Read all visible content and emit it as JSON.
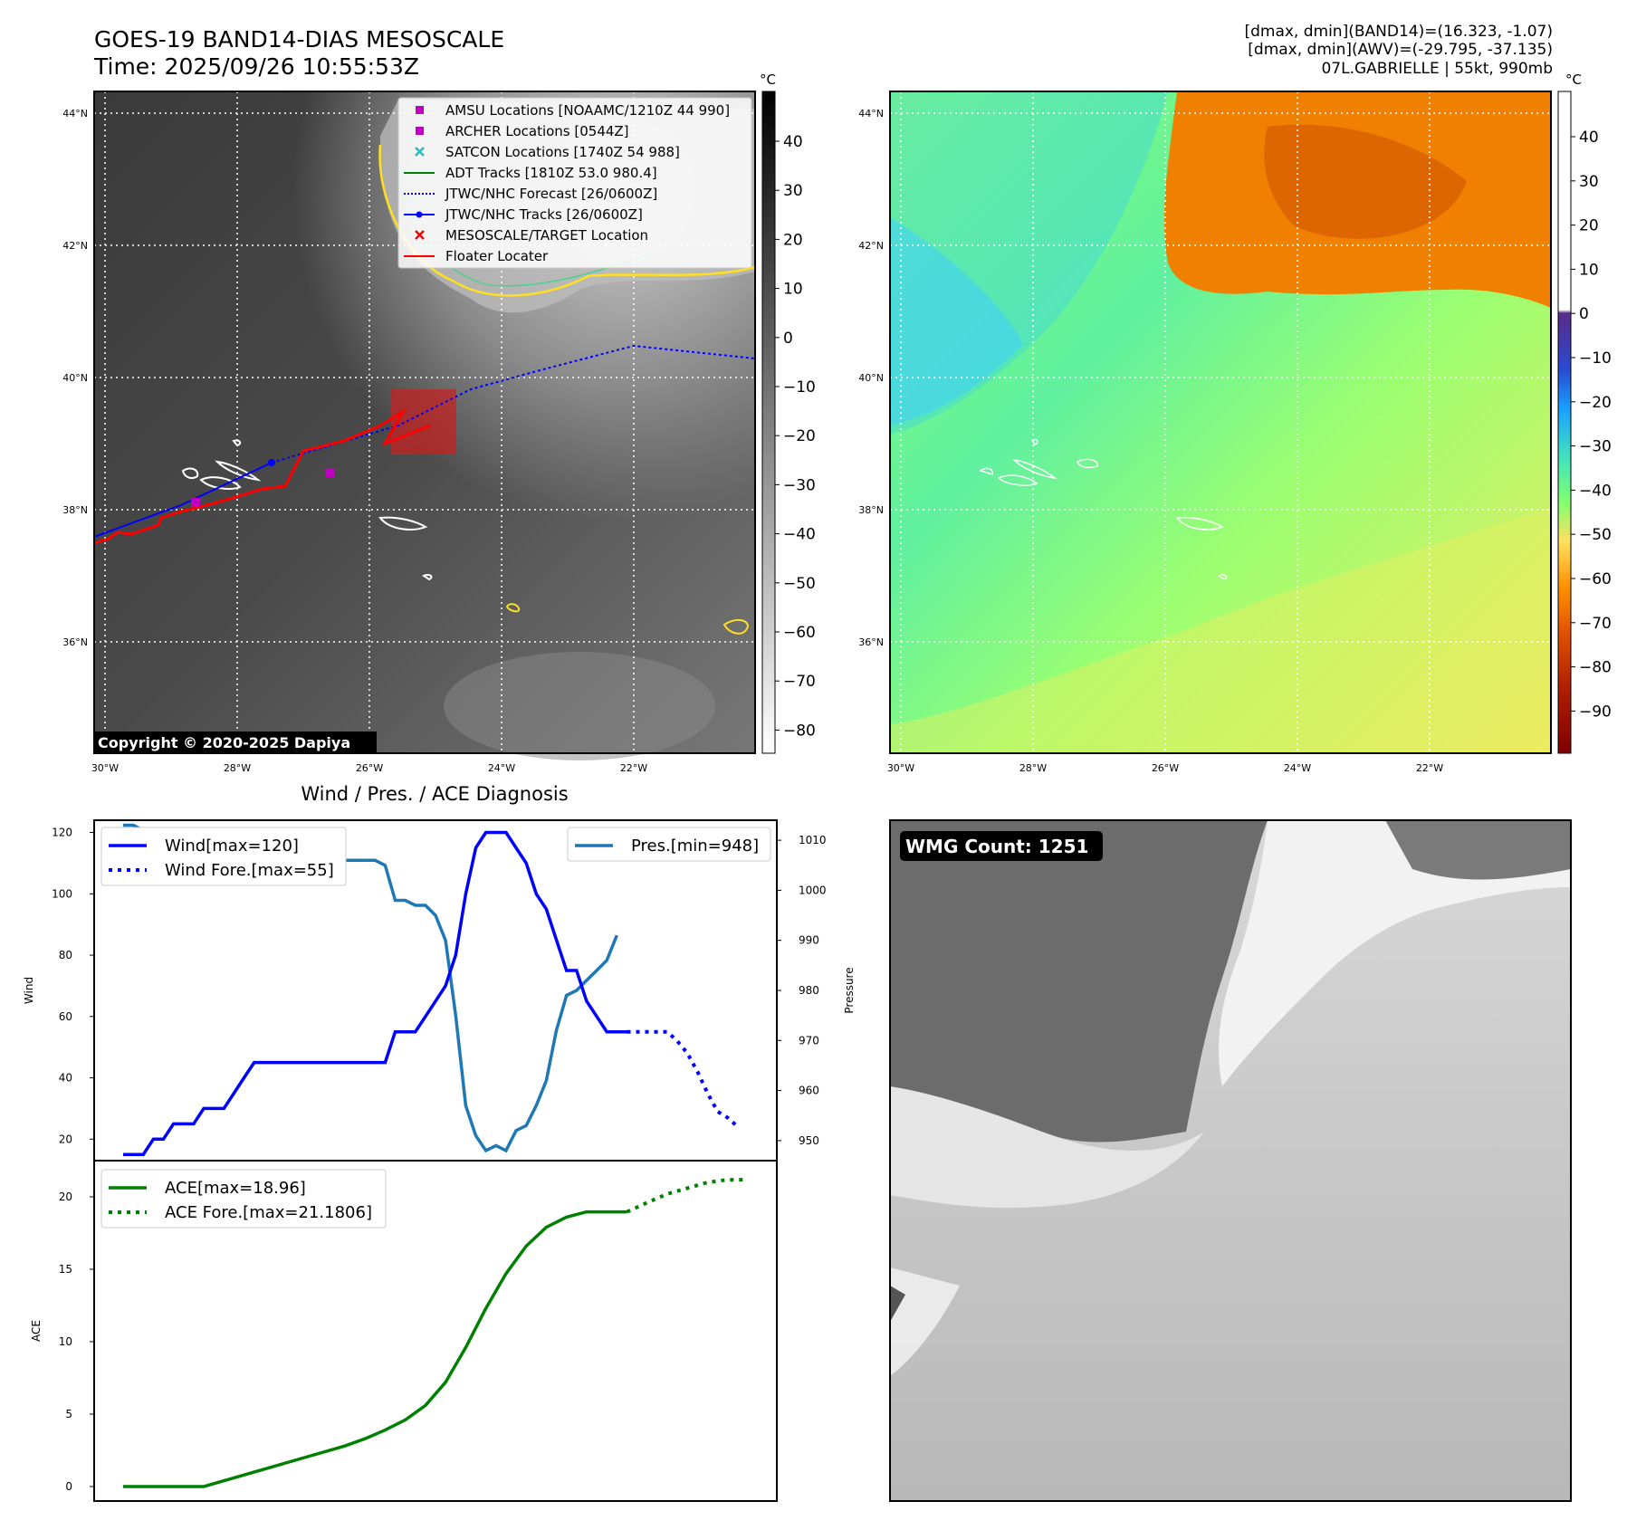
{
  "header": {
    "title_line1": "GOES-19 BAND14-DIAS MESOSCALE",
    "title_line2": "Time: 2025/09/26 10:55:53Z",
    "stats_line1": "[dmax, dmin](BAND14)=(16.323, -1.07)",
    "stats_line2": "[dmax, dmin](AWV)=(-29.795, -37.135)",
    "stats_line3": "07L.GABRIELLE | 55kt, 990mb"
  },
  "unit_label": "°C",
  "copyright": "Copyright © 2020-2025 Dapiya",
  "map_axes": {
    "lat_labels": [
      "44°N",
      "42°N",
      "40°N",
      "38°N",
      "36°N"
    ],
    "lon_labels": [
      "30°W",
      "28°W",
      "26°W",
      "24°W",
      "22°W"
    ]
  },
  "colorbar_ir": {
    "ticks": [
      "40",
      "30",
      "20",
      "10",
      "0",
      "−10",
      "−20",
      "−30",
      "−40",
      "−50",
      "−60",
      "−70",
      "−80"
    ]
  },
  "colorbar_wv": {
    "ticks": [
      "40",
      "30",
      "20",
      "10",
      "0",
      "−10",
      "−20",
      "−30",
      "−40",
      "−50",
      "−60",
      "−70",
      "−80",
      "−90"
    ]
  },
  "legend": {
    "items": [
      {
        "label": "AMSU Locations [NOAAMC/1210Z 44 990]",
        "color": "#c000c0",
        "kind": "square"
      },
      {
        "label": "ARCHER Locations [0544Z]",
        "color": "#c000c0",
        "kind": "square"
      },
      {
        "label": "SATCON Locations [1740Z 54 988]",
        "color": "#20c0c0",
        "kind": "x"
      },
      {
        "label": "ADT Tracks [1810Z 53.0 980.4]",
        "color": "#008000",
        "kind": "line"
      },
      {
        "label": "JTWC/NHC Forecast [26/0600Z]",
        "color": "#0000ff",
        "kind": "dotted"
      },
      {
        "label": "JTWC/NHC Tracks [26/0600Z]",
        "color": "#0000ff",
        "kind": "dotline"
      },
      {
        "label": "MESOSCALE/TARGET Location",
        "color": "#ff0000",
        "kind": "x"
      },
      {
        "label": "Floater Locater",
        "color": "#ff0000",
        "kind": "line"
      }
    ]
  },
  "diag_title": "Wind / Pres. / ACE Diagnosis",
  "wmg_label": "WMG Count: 1251",
  "chart_data": [
    {
      "type": "line",
      "title": "Wind / Pres. / ACE Diagnosis",
      "ylabel": "Wind",
      "ylim": [
        13,
        124
      ],
      "yticks": [
        20,
        40,
        60,
        80,
        100,
        120
      ],
      "legend": [
        "Wind[max=120]",
        "Wind Fore.[max=55]"
      ],
      "series": [
        {
          "name": "Wind[max=120]",
          "style": "solid",
          "color": "#0000ff",
          "points": [
            [
              0,
              15
            ],
            [
              2,
              15
            ],
            [
              3,
              20
            ],
            [
              4,
              20
            ],
            [
              5,
              25
            ],
            [
              6,
              25
            ],
            [
              7,
              25
            ],
            [
              8,
              30
            ],
            [
              9,
              30
            ],
            [
              10,
              30
            ],
            [
              11,
              35
            ],
            [
              12,
              40
            ],
            [
              13,
              45
            ],
            [
              14,
              45
            ],
            [
              15,
              45
            ],
            [
              16,
              45
            ],
            [
              17,
              45
            ],
            [
              18,
              45
            ],
            [
              19,
              45
            ],
            [
              20,
              45
            ],
            [
              21,
              45
            ],
            [
              22,
              45
            ],
            [
              23,
              45
            ],
            [
              24,
              45
            ],
            [
              25,
              45
            ],
            [
              26,
              45
            ],
            [
              27,
              55
            ],
            [
              28,
              55
            ],
            [
              29,
              55
            ],
            [
              30,
              60
            ],
            [
              31,
              65
            ],
            [
              32,
              70
            ],
            [
              33,
              80
            ],
            [
              34,
              100
            ],
            [
              35,
              115
            ],
            [
              36,
              120
            ],
            [
              37,
              120
            ],
            [
              38,
              120
            ],
            [
              39,
              115
            ],
            [
              40,
              110
            ],
            [
              41,
              100
            ],
            [
              42,
              95
            ],
            [
              43,
              85
            ],
            [
              44,
              75
            ],
            [
              45,
              75
            ],
            [
              46,
              65
            ],
            [
              47,
              60
            ],
            [
              48,
              55
            ],
            [
              49,
              55
            ],
            [
              50,
              55
            ]
          ]
        },
        {
          "name": "Wind Fore.[max=55]",
          "style": "dotted",
          "color": "#0000ff",
          "points": [
            [
              50,
              55
            ],
            [
              51,
              55
            ],
            [
              52,
              55
            ],
            [
              53,
              55
            ],
            [
              54,
              55
            ],
            [
              55,
              52
            ],
            [
              56,
              48
            ],
            [
              57,
              42
            ],
            [
              58,
              35
            ],
            [
              59,
              29
            ],
            [
              60,
              27
            ],
            [
              61,
              24
            ]
          ]
        }
      ]
    },
    {
      "type": "line",
      "ylabel": "Pressure",
      "ylim": [
        946,
        1014
      ],
      "yticks": [
        950,
        960,
        970,
        980,
        990,
        1000,
        1010
      ],
      "legend": [
        "Pres.[min=948]"
      ],
      "series": [
        {
          "name": "Pres.[min=948]",
          "style": "solid",
          "color": "#1f77b4",
          "points": [
            [
              0,
              1013
            ],
            [
              1,
              1013
            ],
            [
              2,
              1012
            ],
            [
              3,
              1012
            ],
            [
              4,
              1011
            ],
            [
              5,
              1010
            ],
            [
              6,
              1009
            ],
            [
              7,
              1009
            ],
            [
              8,
              1008
            ],
            [
              9,
              1008
            ],
            [
              10,
              1008
            ],
            [
              11,
              1007
            ],
            [
              12,
              1007
            ],
            [
              13,
              1006
            ],
            [
              14,
              1006
            ],
            [
              15,
              1006
            ],
            [
              16,
              1006
            ],
            [
              17,
              1006
            ],
            [
              18,
              1006
            ],
            [
              19,
              1006
            ],
            [
              20,
              1006
            ],
            [
              21,
              1006
            ],
            [
              22,
              1006
            ],
            [
              23,
              1006
            ],
            [
              24,
              1006
            ],
            [
              25,
              1006
            ],
            [
              26,
              1005
            ],
            [
              27,
              998
            ],
            [
              28,
              998
            ],
            [
              29,
              997
            ],
            [
              30,
              997
            ],
            [
              31,
              995
            ],
            [
              32,
              990
            ],
            [
              33,
              975
            ],
            [
              34,
              957
            ],
            [
              35,
              951
            ],
            [
              36,
              948
            ],
            [
              37,
              949
            ],
            [
              38,
              948
            ],
            [
              39,
              952
            ],
            [
              40,
              953
            ],
            [
              41,
              957
            ],
            [
              42,
              962
            ],
            [
              43,
              972
            ],
            [
              44,
              979
            ],
            [
              45,
              980
            ],
            [
              46,
              982
            ],
            [
              47,
              984
            ],
            [
              48,
              986
            ],
            [
              49,
              991
            ]
          ]
        }
      ]
    },
    {
      "type": "line",
      "ylabel": "ACE",
      "ylim": [
        -1,
        22.5
      ],
      "yticks": [
        0,
        5,
        10,
        15,
        20
      ],
      "legend": [
        "ACE[max=18.96]",
        "ACE Fore.[max=21.1806]"
      ],
      "series": [
        {
          "name": "ACE[max=18.96]",
          "style": "solid",
          "color": "#008000",
          "points": [
            [
              0,
              0
            ],
            [
              8,
              0
            ],
            [
              10,
              0.4
            ],
            [
              14,
              1.2
            ],
            [
              18,
              2
            ],
            [
              22,
              2.8
            ],
            [
              24,
              3.3
            ],
            [
              26,
              3.9
            ],
            [
              28,
              4.6
            ],
            [
              30,
              5.6
            ],
            [
              32,
              7.2
            ],
            [
              34,
              9.6
            ],
            [
              36,
              12.3
            ],
            [
              38,
              14.7
            ],
            [
              40,
              16.6
            ],
            [
              42,
              17.9
            ],
            [
              44,
              18.6
            ],
            [
              46,
              18.96
            ],
            [
              48,
              18.96
            ],
            [
              50,
              18.96
            ]
          ]
        },
        {
          "name": "ACE Fore.[max=21.1806]",
          "style": "dotted",
          "color": "#008000",
          "points": [
            [
              50,
              18.96
            ],
            [
              52,
              19.6
            ],
            [
              54,
              20.2
            ],
            [
              56,
              20.6
            ],
            [
              58,
              21.0
            ],
            [
              60,
              21.18
            ],
            [
              62,
              21.18
            ]
          ]
        }
      ]
    }
  ]
}
